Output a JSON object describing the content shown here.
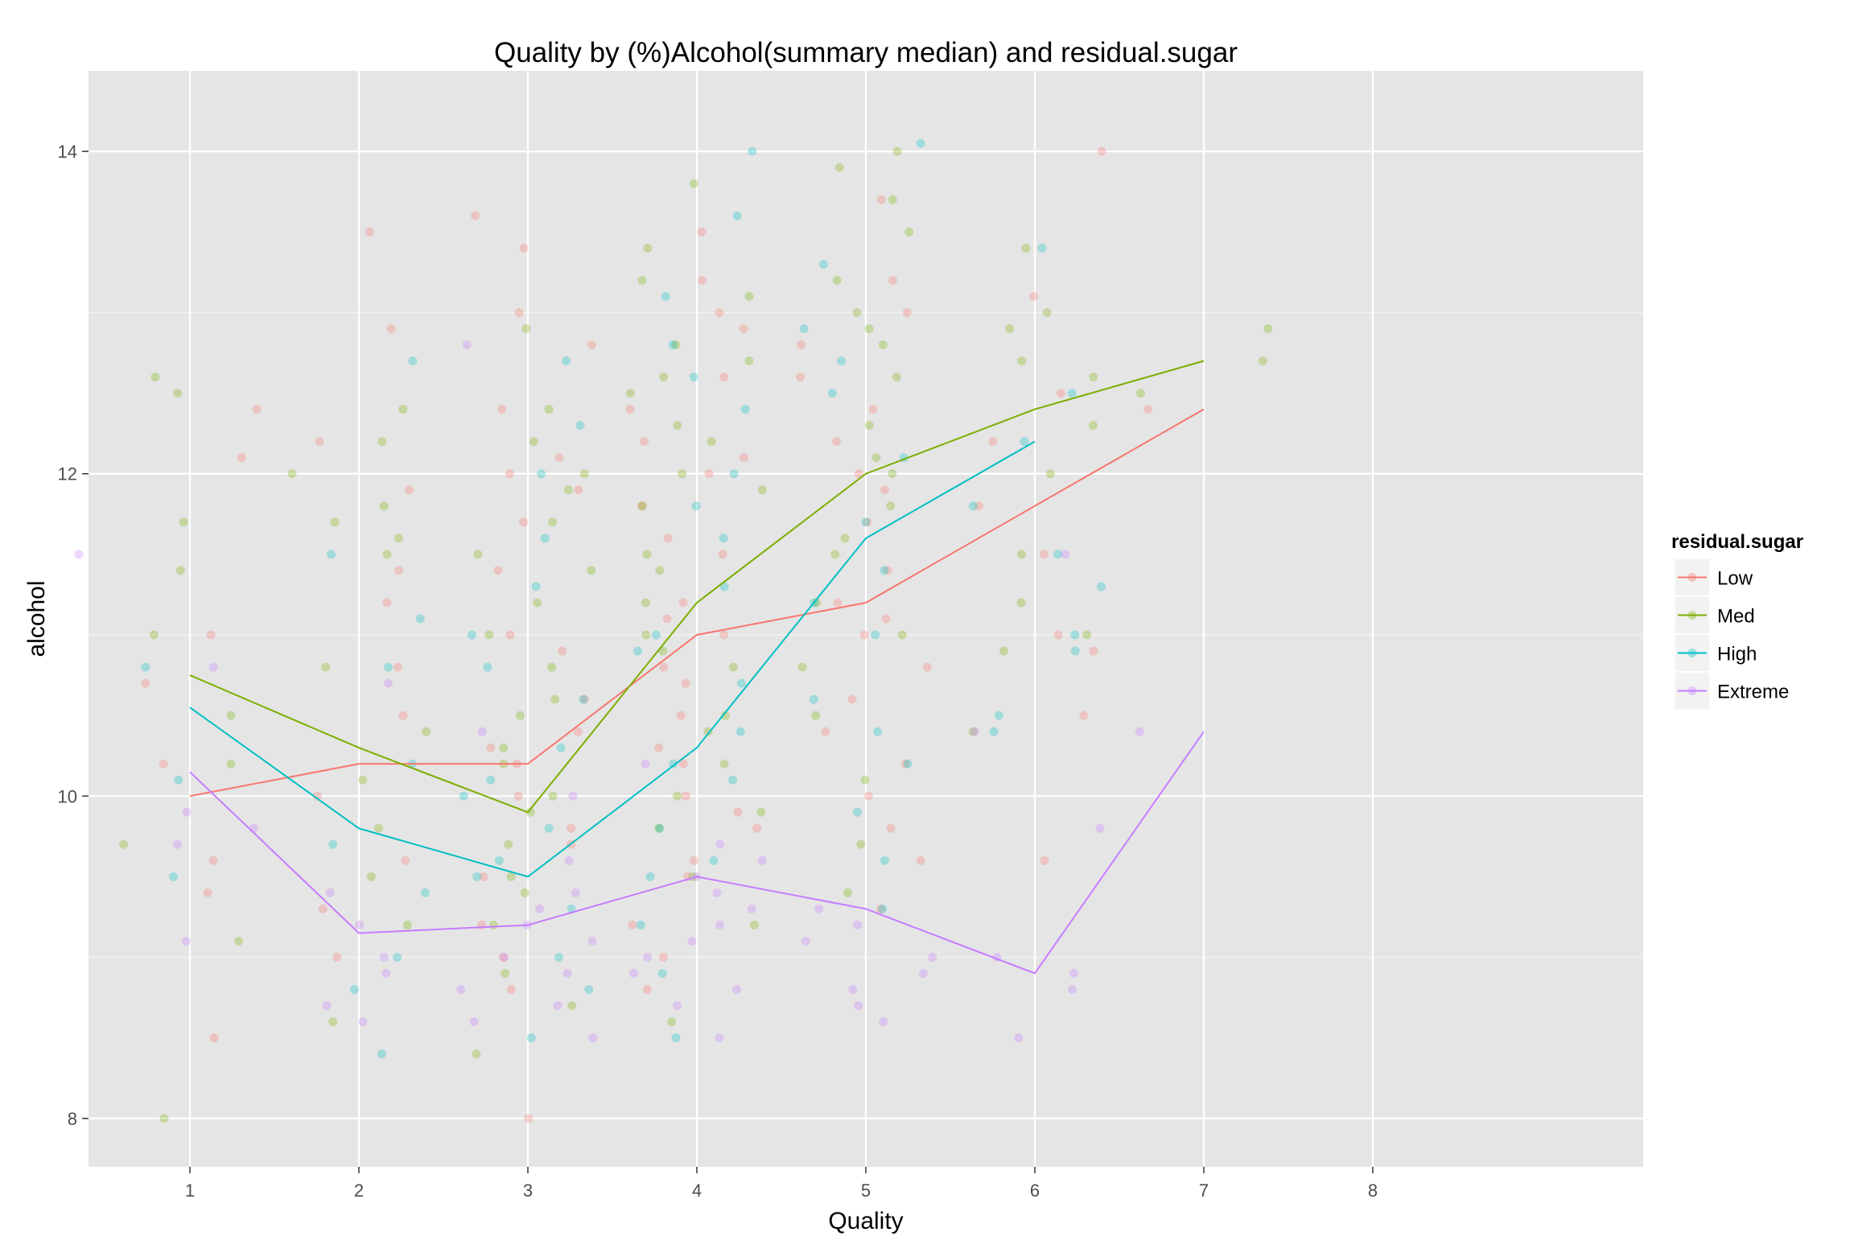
{
  "chart_data": {
    "type": "scatter",
    "title": "Quality by (%)Alcohol(summary median) and residual.sugar",
    "xlabel": "Quality",
    "ylabel": "alcohol",
    "xlim": [
      0.4,
      9.6
    ],
    "ylim": [
      7.7,
      14.5
    ],
    "x_ticks": [
      1,
      2,
      3,
      4,
      5,
      6,
      7,
      8
    ],
    "y_ticks": [
      8,
      10,
      12,
      14
    ],
    "grid": true,
    "legend": {
      "title": "residual.sugar",
      "placement": "right"
    },
    "point_opacity": 0.3,
    "jitter_width": 0.4,
    "series": [
      {
        "name": "Low",
        "color": "#F8766D",
        "median_line": {
          "x": [
            1,
            2,
            3,
            4,
            5,
            6,
            7
          ],
          "y": [
            10.0,
            10.2,
            10.2,
            11.0,
            11.2,
            11.8,
            12.4
          ]
        },
        "points": {
          "1": [
            11.0,
            10.2,
            9.4,
            12.4,
            8.5,
            9.6,
            10.7,
            12.1
          ],
          "2": [
            11.2,
            10.5,
            12.9,
            9.0,
            11.4,
            10.0,
            13.5,
            9.3,
            12.2,
            10.8,
            11.9,
            9.6
          ],
          "3": [
            13.6,
            13.4,
            12.1,
            12.0,
            11.4,
            11.0,
            10.6,
            10.4,
            10.2,
            10.0,
            9.8,
            9.5,
            9.2,
            9.0,
            8.8,
            8.0,
            12.8,
            11.7,
            10.9,
            10.3,
            13.0,
            11.9,
            9.7,
            12.4
          ],
          "4": [
            13.5,
            12.9,
            12.6,
            12.2,
            12.0,
            11.8,
            11.5,
            11.2,
            11.0,
            10.8,
            10.5,
            10.2,
            10.0,
            9.8,
            9.5,
            9.2,
            9.0,
            8.8,
            13.0,
            12.4,
            11.6,
            11.1,
            10.7,
            10.3,
            9.9,
            9.6,
            13.2,
            12.1
          ],
          "5": [
            13.7,
            13.2,
            12.8,
            12.4,
            12.0,
            11.7,
            11.4,
            11.2,
            11.0,
            10.8,
            10.4,
            10.0,
            9.6,
            9.3,
            12.6,
            11.9,
            11.1,
            10.6,
            13.0,
            9.8,
            12.2,
            10.2
          ],
          "6": [
            14.0,
            13.1,
            12.2,
            11.5,
            11.0,
            10.5,
            9.6,
            12.5,
            11.8,
            10.9
          ],
          "7": [
            12.4
          ]
        }
      },
      {
        "name": "Med",
        "color": "#7CAE00",
        "median_line": {
          "x": [
            1,
            2,
            3,
            4,
            5,
            6,
            7
          ],
          "y": [
            10.75,
            10.3,
            9.9,
            11.2,
            12.0,
            12.4,
            12.7
          ]
        },
        "points": {
          "1": [
            12.6,
            11.7,
            10.5,
            8.0,
            9.1,
            11.0,
            10.2,
            12.5,
            11.4,
            9.7
          ],
          "2": [
            11.7,
            11.5,
            12.4,
            11.6,
            10.4,
            9.5,
            9.2,
            8.6,
            12.0,
            10.8,
            10.1,
            9.8,
            11.8,
            12.2
          ],
          "3": [
            12.9,
            12.4,
            12.0,
            11.7,
            11.5,
            11.2,
            11.0,
            10.8,
            10.5,
            10.2,
            10.0,
            9.7,
            9.5,
            9.2,
            8.9,
            8.4,
            12.2,
            11.4,
            10.6,
            9.9,
            8.7,
            11.9,
            10.3,
            9.4
          ],
          "4": [
            13.8,
            13.4,
            13.1,
            12.8,
            12.5,
            12.2,
            12.0,
            11.8,
            11.5,
            11.2,
            11.0,
            10.8,
            10.5,
            10.2,
            10.0,
            9.8,
            9.5,
            9.2,
            8.6,
            13.2,
            12.7,
            12.3,
            11.9,
            11.4,
            10.9,
            10.4,
            9.9,
            12.6
          ],
          "5": [
            14.0,
            13.9,
            13.5,
            13.2,
            12.9,
            12.6,
            12.3,
            12.0,
            11.8,
            11.5,
            11.2,
            11.0,
            10.8,
            10.5,
            10.1,
            9.7,
            9.4,
            13.7,
            12.8,
            12.1,
            11.6,
            13.0
          ],
          "6": [
            13.4,
            13.0,
            12.9,
            12.6,
            12.3,
            12.0,
            11.5,
            11.0,
            10.9,
            10.4,
            12.7,
            11.2
          ],
          "7": [
            12.7,
            12.9,
            12.5
          ]
        }
      },
      {
        "name": "High",
        "color": "#00BFC4",
        "median_line": {
          "x": [
            1,
            2,
            3,
            4,
            5,
            6
          ],
          "y": [
            10.55,
            9.8,
            9.5,
            10.3,
            11.6,
            12.2
          ]
        },
        "points": {
          "1": [
            10.1,
            9.5,
            10.8
          ],
          "2": [
            12.7,
            11.5,
            11.1,
            10.8,
            9.4,
            9.0,
            8.8,
            8.4,
            10.2,
            9.7
          ],
          "3": [
            12.7,
            12.0,
            11.6,
            11.3,
            11.0,
            10.6,
            10.3,
            10.0,
            9.8,
            9.6,
            9.3,
            9.0,
            8.8,
            8.5,
            12.3,
            10.8,
            9.5,
            10.1
          ],
          "4": [
            14.0,
            13.6,
            13.1,
            12.8,
            12.4,
            12.0,
            11.6,
            11.3,
            11.0,
            10.7,
            10.4,
            10.1,
            9.8,
            9.5,
            9.2,
            8.9,
            8.5,
            12.6,
            11.8,
            10.9,
            10.2,
            9.6
          ],
          "5": [
            14.05,
            13.3,
            12.9,
            12.5,
            12.1,
            11.7,
            11.4,
            11.0,
            10.6,
            10.2,
            9.9,
            9.6,
            9.3,
            12.7,
            11.2,
            10.4
          ],
          "6": [
            13.4,
            12.5,
            12.2,
            11.8,
            11.3,
            11.0,
            10.9,
            10.5,
            10.4,
            11.5
          ]
        }
      },
      {
        "name": "Extreme",
        "color": "#C77CFF",
        "median_line": {
          "x": [
            1,
            2,
            3,
            4,
            5,
            6,
            7
          ],
          "y": [
            10.15,
            9.15,
            9.2,
            9.5,
            9.3,
            8.9,
            10.4
          ]
        },
        "points": {
          "0": [
            11.5
          ],
          "1": [
            9.7,
            9.1,
            9.8,
            10.8,
            9.9
          ],
          "2": [
            9.0,
            8.6,
            9.2,
            8.9,
            10.7,
            9.4,
            8.7
          ],
          "3": [
            12.8,
            10.4,
            9.4,
            9.2,
            9.0,
            8.8,
            8.6,
            8.5,
            9.6,
            9.3,
            9.1,
            8.9,
            8.7,
            10.0
          ],
          "4": [
            9.6,
            9.4,
            9.2,
            9.0,
            8.8,
            8.7,
            8.5,
            9.5,
            9.3,
            9.1,
            8.9,
            9.7,
            10.2
          ],
          "5": [
            9.3,
            9.0,
            8.8,
            8.7,
            9.1,
            8.9,
            9.2,
            8.6
          ],
          "6": [
            9.8,
            8.9,
            8.8,
            8.5,
            9.0,
            11.5,
            10.4
          ],
          "7": [
            10.4
          ]
        }
      }
    ]
  }
}
